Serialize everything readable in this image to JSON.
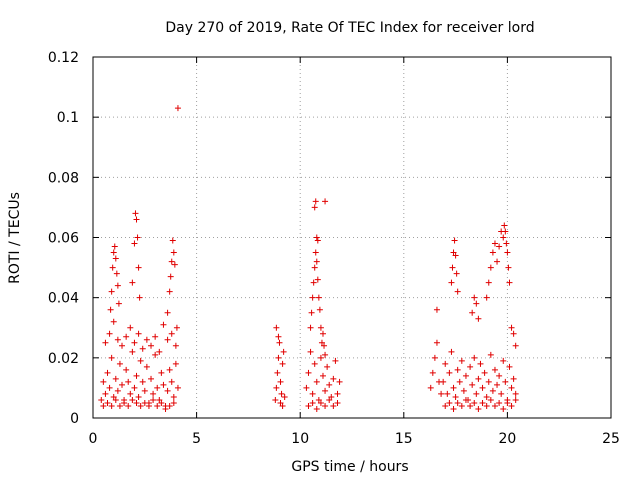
{
  "chart_data": {
    "type": "scatter",
    "title": "Day 270 of 2019, Rate Of TEC Index for receiver lord",
    "xlabel": "GPS time / hours",
    "ylabel": "ROTI / TECUs",
    "xlim": [
      0,
      25
    ],
    "ylim": [
      0,
      0.12
    ],
    "x_ticks": [
      "0",
      "5",
      "10",
      "15",
      "20",
      "25"
    ],
    "y_ticks": [
      "0",
      "0.02",
      "0.04",
      "0.06",
      "0.08",
      "0.1",
      "0.12"
    ],
    "grid": true,
    "marker": "plus",
    "marker_color": "#e00000",
    "x": [
      0.4,
      0.5,
      0.6,
      0.7,
      0.8,
      0.9,
      1.0,
      1.1,
      1.2,
      1.3,
      1.4,
      1.5,
      1.6,
      1.7,
      1.8,
      1.9,
      2.0,
      2.1,
      2.2,
      2.3,
      2.4,
      2.5,
      2.6,
      2.7,
      2.8,
      2.9,
      3.0,
      3.1,
      3.2,
      3.3,
      3.4,
      3.5,
      3.6,
      3.7,
      3.8,
      3.9,
      4.0,
      4.1,
      0.5,
      0.7,
      0.9,
      1.1,
      1.3,
      1.5,
      1.7,
      1.9,
      2.1,
      2.3,
      2.5,
      2.7,
      2.9,
      3.1,
      3.3,
      3.5,
      3.7,
      3.9,
      0.6,
      0.8,
      1.0,
      1.2,
      1.4,
      1.6,
      1.8,
      2.0,
      2.2,
      2.4,
      2.6,
      2.8,
      3.0,
      3.2,
      3.4,
      3.6,
      3.8,
      4.0,
      0.85,
      0.9,
      0.95,
      1.0,
      1.05,
      1.1,
      1.15,
      1.2,
      1.25,
      1.9,
      2.0,
      2.05,
      2.1,
      2.15,
      2.2,
      2.25,
      3.6,
      3.7,
      3.75,
      3.8,
      3.85,
      3.9,
      3.95,
      4.05,
      4.1,
      8.8,
      8.85,
      8.9,
      8.95,
      9.0,
      9.05,
      9.1,
      9.15,
      9.2,
      9.25,
      8.85,
      8.95,
      9.05,
      9.15,
      10.3,
      10.4,
      10.5,
      10.6,
      10.7,
      10.8,
      10.9,
      11.0,
      11.1,
      11.2,
      11.3,
      11.4,
      11.5,
      11.6,
      11.7,
      11.8,
      11.9,
      10.4,
      10.6,
      10.8,
      11.0,
      11.2,
      11.4,
      11.6,
      11.8,
      10.5,
      10.55,
      10.6,
      10.65,
      10.7,
      10.75,
      10.8,
      10.85,
      10.9,
      10.95,
      11.0,
      11.05,
      11.1,
      11.15,
      11.2,
      10.7,
      10.75,
      10.8,
      10.85,
      11.2,
      16.3,
      16.4,
      16.5,
      16.6,
      16.7,
      16.8,
      16.6,
      16.9,
      17.0,
      17.1,
      17.2,
      17.3,
      17.4,
      17.5,
      17.6,
      17.7,
      17.8,
      17.9,
      18.0,
      18.1,
      18.2,
      18.3,
      18.4,
      18.5,
      18.6,
      18.7,
      18.8,
      18.9,
      19.0,
      19.1,
      19.2,
      19.3,
      19.4,
      19.5,
      19.6,
      19.7,
      19.8,
      19.9,
      20.0,
      20.1,
      20.2,
      20.3,
      20.4,
      17.0,
      17.2,
      17.4,
      17.6,
      17.8,
      18.0,
      18.2,
      18.4,
      18.6,
      18.8,
      19.0,
      19.2,
      19.4,
      19.6,
      19.8,
      20.0,
      20.2,
      20.4,
      17.3,
      17.35,
      17.4,
      17.45,
      17.5,
      17.55,
      17.6,
      18.3,
      18.4,
      18.5,
      18.6,
      19.0,
      19.1,
      19.2,
      19.3,
      19.4,
      19.5,
      19.6,
      19.7,
      19.8,
      19.85,
      19.9,
      19.95,
      20.0,
      20.05,
      20.1,
      20.2,
      20.3,
      20.4
    ],
    "y": [
      0.006,
      0.012,
      0.008,
      0.015,
      0.01,
      0.02,
      0.007,
      0.013,
      0.009,
      0.018,
      0.011,
      0.006,
      0.016,
      0.012,
      0.008,
      0.022,
      0.01,
      0.014,
      0.007,
      0.019,
      0.012,
      0.009,
      0.017,
      0.005,
      0.013,
      0.008,
      0.021,
      0.01,
      0.006,
      0.015,
      0.011,
      0.004,
      0.009,
      0.016,
      0.012,
      0.007,
      0.018,
      0.01,
      0.004,
      0.005,
      0.004,
      0.006,
      0.004,
      0.005,
      0.004,
      0.006,
      0.005,
      0.004,
      0.005,
      0.004,
      0.006,
      0.004,
      0.005,
      0.003,
      0.004,
      0.005,
      0.025,
      0.028,
      0.032,
      0.026,
      0.024,
      0.027,
      0.03,
      0.025,
      0.028,
      0.023,
      0.026,
      0.024,
      0.027,
      0.022,
      0.031,
      0.026,
      0.028,
      0.024,
      0.036,
      0.042,
      0.05,
      0.055,
      0.057,
      0.053,
      0.048,
      0.044,
      0.038,
      0.045,
      0.058,
      0.068,
      0.066,
      0.06,
      0.05,
      0.04,
      0.035,
      0.042,
      0.047,
      0.052,
      0.059,
      0.055,
      0.051,
      0.03,
      0.103,
      0.006,
      0.01,
      0.015,
      0.02,
      0.025,
      0.012,
      0.008,
      0.018,
      0.022,
      0.007,
      0.03,
      0.027,
      0.005,
      0.004,
      0.01,
      0.015,
      0.022,
      0.008,
      0.018,
      0.012,
      0.006,
      0.02,
      0.014,
      0.009,
      0.017,
      0.011,
      0.007,
      0.013,
      0.019,
      0.008,
      0.012,
      0.004,
      0.005,
      0.003,
      0.005,
      0.004,
      0.006,
      0.004,
      0.005,
      0.03,
      0.035,
      0.04,
      0.045,
      0.05,
      0.055,
      0.052,
      0.046,
      0.04,
      0.036,
      0.03,
      0.025,
      0.028,
      0.024,
      0.021,
      0.07,
      0.072,
      0.06,
      0.059,
      0.072,
      0.01,
      0.015,
      0.02,
      0.025,
      0.012,
      0.008,
      0.036,
      0.012,
      0.018,
      0.008,
      0.015,
      0.022,
      0.01,
      0.007,
      0.016,
      0.012,
      0.019,
      0.009,
      0.014,
      0.006,
      0.017,
      0.011,
      0.02,
      0.008,
      0.013,
      0.018,
      0.01,
      0.015,
      0.007,
      0.012,
      0.021,
      0.009,
      0.016,
      0.011,
      0.014,
      0.008,
      0.019,
      0.012,
      0.006,
      0.017,
      0.01,
      0.013,
      0.008,
      0.004,
      0.005,
      0.003,
      0.005,
      0.004,
      0.006,
      0.004,
      0.005,
      0.003,
      0.005,
      0.004,
      0.006,
      0.004,
      0.005,
      0.003,
      0.005,
      0.004,
      0.006,
      0.045,
      0.05,
      0.055,
      0.059,
      0.054,
      0.048,
      0.042,
      0.035,
      0.04,
      0.038,
      0.033,
      0.04,
      0.045,
      0.05,
      0.055,
      0.058,
      0.052,
      0.057,
      0.062,
      0.06,
      0.064,
      0.062,
      0.058,
      0.055,
      0.05,
      0.045,
      0.03,
      0.028,
      0.024
    ]
  }
}
